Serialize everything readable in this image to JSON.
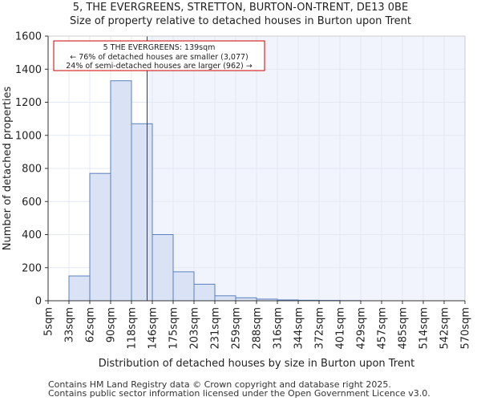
{
  "chart_data": {
    "type": "bar",
    "title": "5, THE EVERGREENS, STRETTON, BURTON-ON-TRENT, DE13 0BE",
    "subtitle": "Size of property relative to detached houses in Burton upon Trent",
    "xlabel": "Distribution of detached houses by size in Burton upon Trent",
    "ylabel": "Number of detached properties",
    "ylim": [
      0,
      1600
    ],
    "yticks": [
      0,
      200,
      400,
      600,
      800,
      1000,
      1200,
      1400,
      1600
    ],
    "bin_edges": [
      "5sqm",
      "33sqm",
      "62sqm",
      "90sqm",
      "118sqm",
      "146sqm",
      "175sqm",
      "203sqm",
      "231sqm",
      "259sqm",
      "288sqm",
      "316sqm",
      "344sqm",
      "372sqm",
      "401sqm",
      "429sqm",
      "457sqm",
      "485sqm",
      "514sqm",
      "542sqm",
      "570sqm"
    ],
    "values": [
      0,
      150,
      770,
      1330,
      1070,
      400,
      175,
      100,
      30,
      18,
      10,
      5,
      3,
      2,
      1,
      0,
      0,
      0,
      0,
      0
    ],
    "marker": {
      "value": 139,
      "label_line1": "5 THE EVERGREENS: 139sqm",
      "label_line2": "← 76% of detached houses are smaller (3,077)",
      "label_line3": "24% of semi-detached houses are larger (962) →"
    },
    "grid": true
  },
  "footer": {
    "line1": "Contains HM Land Registry data © Crown copyright and database right 2025.",
    "line2": "Contains public sector information licensed under the Open Government Licence v3.0."
  },
  "colors": {
    "bar_fill": "#dae3f5",
    "bar_stroke": "#5b80c0",
    "marker": "#cc0000",
    "shade": "#f1f4fc",
    "grid": "#e3e8f3"
  }
}
